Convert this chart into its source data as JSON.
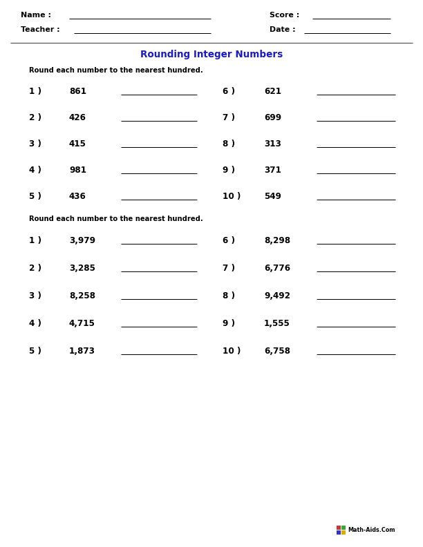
{
  "page_width": 8.5,
  "page_height": 11.0,
  "dpi": 72,
  "bg_color": "#ffffff",
  "title": "Rounding Integer Numbers",
  "title_color": "#1a1acc",
  "title_fontsize": 13.5,
  "instruction1": "Round each number to the nearest hundred.",
  "instruction2": "Round each number to the nearest hundred.",
  "section1_left_nums": [
    "1 )",
    "2 )",
    "3 )",
    "4 )",
    "5 )"
  ],
  "section1_left_vals": [
    "861",
    "426",
    "415",
    "981",
    "436"
  ],
  "section1_right_nums": [
    "6 )",
    "7 )",
    "8 )",
    "9 )",
    "10 )"
  ],
  "section1_right_vals": [
    "621",
    "699",
    "313",
    "371",
    "549"
  ],
  "section2_left_nums": [
    "1 )",
    "2 )",
    "3 )",
    "4 )",
    "5 )"
  ],
  "section2_left_vals": [
    "3,979",
    "3,285",
    "8,258",
    "4,715",
    "1,873"
  ],
  "section2_right_nums": [
    "6 )",
    "7 )",
    "8 )",
    "9 )",
    "10 )"
  ],
  "section2_right_vals": [
    "8,298",
    "6,776",
    "9,492",
    "1,555",
    "6,758"
  ],
  "watermark": "Math-Aids.Com",
  "font_color": "#000000",
  "line_color": "#000000"
}
